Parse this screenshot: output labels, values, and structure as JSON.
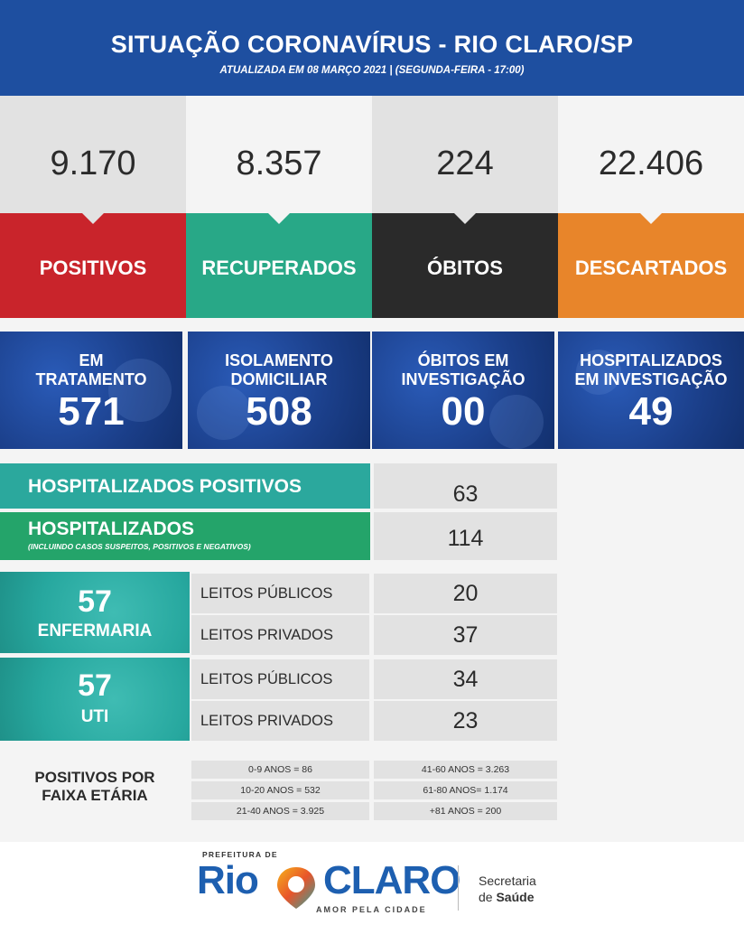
{
  "header": {
    "title": "SITUAÇÃO CORONAVÍRUS - RIO CLARO/SP",
    "subtitle": "ATUALIZADA EM 08 MARÇO 2021 | (SEGUNDA-FEIRA - 17:00)"
  },
  "stats": [
    {
      "value": "9.170",
      "label": "POSITIVOS",
      "color": "#c9242b"
    },
    {
      "value": "8.357",
      "label": "RECUPERADOS",
      "color": "#28a887"
    },
    {
      "value": "224",
      "label": "ÓBITOS",
      "color": "#2a2a2a"
    },
    {
      "value": "22.406",
      "label": "DESCARTADOS",
      "color": "#e8852a"
    }
  ],
  "info": [
    {
      "label_line1": "EM",
      "label_line2": "TRATAMENTO",
      "value": "571"
    },
    {
      "label_line1": "ISOLAMENTO",
      "label_line2": "DOMICILIAR",
      "value": "508"
    },
    {
      "label_line1": "ÓBITOS EM",
      "label_line2": "INVESTIGAÇÃO",
      "value": "00"
    },
    {
      "label_line1": "HOSPITALIZADOS",
      "label_line2": "EM INVESTIGAÇÃO",
      "value": "49"
    }
  ],
  "hospitalized": {
    "positive_label": "HOSPITALIZADOS POSITIVOS",
    "positive_value": "63",
    "total_label": "HOSPITALIZADOS",
    "total_note": "(INCLUINDO CASOS SUSPEITOS, POSITIVOS E NEGATIVOS)",
    "total_value": "114"
  },
  "beds": {
    "ward": {
      "total": "57",
      "name": "ENFERMARIA",
      "public_label": "LEITOS PÚBLICOS",
      "public_value": "20",
      "private_label": "LEITOS PRIVADOS",
      "private_value": "37"
    },
    "icu": {
      "total": "57",
      "name": "UTI",
      "public_label": "LEITOS PÚBLICOS",
      "public_value": "34",
      "private_label": "LEITOS PRIVADOS",
      "private_value": "23"
    }
  },
  "age": {
    "title_line1": "POSITIVOS POR",
    "title_line2": "FAIXA ETÁRIA",
    "left": [
      "0-9 ANOS = 86",
      "10-20 ANOS = 532",
      "21-40 ANOS = 3.925"
    ],
    "right": [
      "41-60 ANOS = 3.263",
      "61-80 ANOS= 1.174",
      "+81 ANOS = 200"
    ]
  },
  "footer": {
    "prefeitura": "PREFEITURA DE",
    "logo_rio": "Rio",
    "logo_claro": "CLARO",
    "slogan": "AMOR PELA CIDADE",
    "secretaria_line1": "Secretaria",
    "secretaria_de": "de ",
    "secretaria_saude": "Saúde"
  },
  "colors": {
    "header": "#1e4fa0",
    "teal": "#27a89f",
    "green": "#24a46a",
    "logo_blue": "#1d5fb0"
  }
}
